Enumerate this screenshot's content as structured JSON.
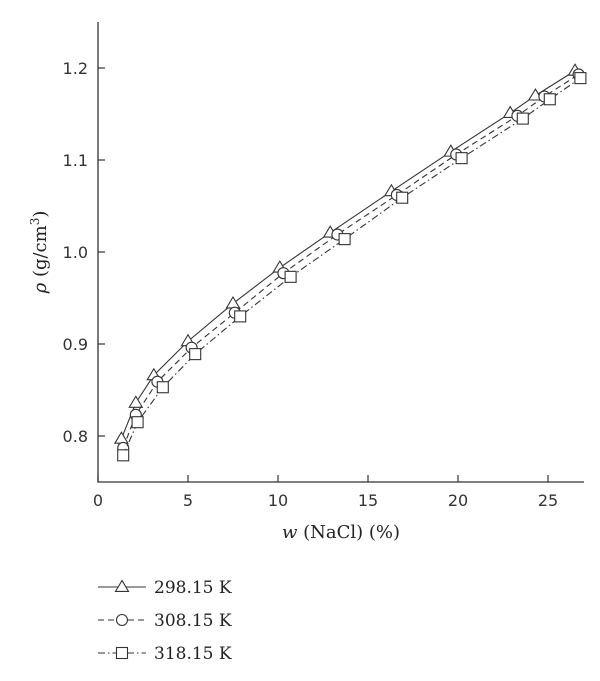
{
  "chart_data": {
    "type": "line",
    "title": "",
    "xlabel_var": "w",
    "xlabel_rest": " (NaCl) (%)",
    "ylabel_var": "ρ",
    "ylabel_rest": " (g/cm",
    "ylabel_sup": "3",
    "ylabel_end": ")",
    "xlim": [
      0,
      27
    ],
    "ylim": [
      0.75,
      1.25
    ],
    "xticks": [
      0,
      5,
      10,
      15,
      20,
      25
    ],
    "yticks": [
      0.8,
      0.9,
      1.0,
      1.1,
      1.2
    ],
    "xtick_labels": [
      "0",
      "5",
      "10",
      "15",
      "20",
      "25"
    ],
    "ytick_labels": [
      "0.8",
      "0.9",
      "1.0",
      "1.1",
      "1.2"
    ],
    "grid": false,
    "legend_position": "bottom-left-outside",
    "series": [
      {
        "name": "298.15 K",
        "marker": "triangle",
        "line_style": "solid",
        "points": [
          [
            1.3,
            0.797
          ],
          [
            2.1,
            0.836
          ],
          [
            3.1,
            0.866
          ],
          [
            5.0,
            0.903
          ],
          [
            7.5,
            0.944
          ],
          [
            10.1,
            0.983
          ],
          [
            12.9,
            1.021
          ],
          [
            16.3,
            1.066
          ],
          [
            19.6,
            1.109
          ],
          [
            22.9,
            1.151
          ],
          [
            24.3,
            1.17
          ],
          [
            26.5,
            1.197
          ]
        ]
      },
      {
        "name": "308.15 K",
        "marker": "circle",
        "line_style": "dashed",
        "points": [
          [
            1.4,
            0.787
          ],
          [
            2.1,
            0.823
          ],
          [
            3.3,
            0.859
          ],
          [
            5.2,
            0.896
          ],
          [
            7.6,
            0.934
          ],
          [
            10.3,
            0.977
          ],
          [
            13.3,
            1.019
          ],
          [
            16.6,
            1.062
          ],
          [
            19.9,
            1.106
          ],
          [
            23.3,
            1.148
          ],
          [
            24.8,
            1.169
          ],
          [
            26.7,
            1.193
          ]
        ]
      },
      {
        "name": "318.15 K",
        "marker": "square",
        "line_style": "dashdot",
        "points": [
          [
            1.4,
            0.779
          ],
          [
            2.2,
            0.815
          ],
          [
            3.6,
            0.853
          ],
          [
            5.4,
            0.889
          ],
          [
            7.9,
            0.93
          ],
          [
            10.7,
            0.973
          ],
          [
            13.7,
            1.014
          ],
          [
            16.9,
            1.059
          ],
          [
            20.2,
            1.102
          ],
          [
            23.6,
            1.145
          ],
          [
            25.1,
            1.166
          ],
          [
            26.8,
            1.189
          ]
        ]
      }
    ]
  }
}
